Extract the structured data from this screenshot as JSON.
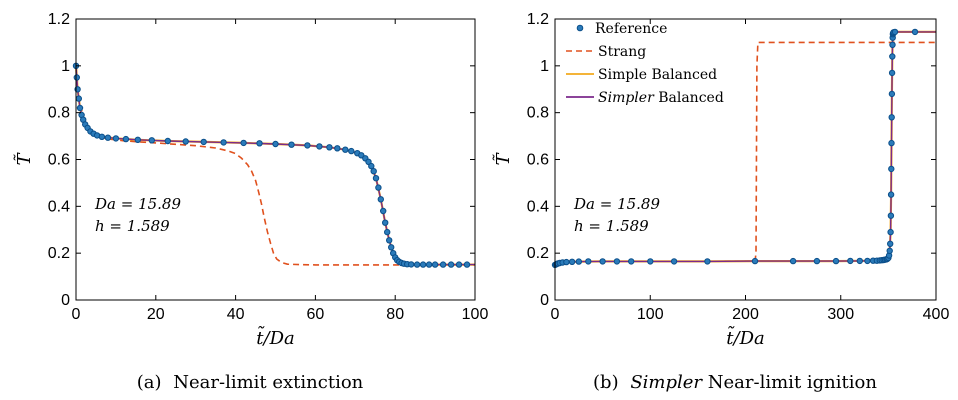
{
  "colors": {
    "reference": "#2b7bba",
    "reference_edge": "#0b4f8a",
    "strang": "#e0511e",
    "simple_balanced": "#f2a91d",
    "simpler_balanced": "#7b2a8c"
  },
  "legend": {
    "reference": "Reference",
    "strang": "Strang",
    "simple_balanced": "Simple Balanced",
    "simpler_italic": "Simpler",
    "simpler_rest": " Balanced"
  },
  "panels": [
    {
      "ylabel": "T̃",
      "xlabel": "t̃/Da",
      "annotation_da": "Da = 15.89",
      "annotation_h": "h = 1.589",
      "caption_prefix": "(a)",
      "caption_italic": "",
      "caption_text": "Near-limit extinction",
      "xticks": [
        "0",
        "20",
        "40",
        "60",
        "80",
        "100"
      ],
      "yticks": [
        "0",
        "0.2",
        "0.4",
        "0.6",
        "0.8",
        "1",
        "1.2"
      ]
    },
    {
      "ylabel": "T̃",
      "xlabel": "t̃/Da",
      "annotation_da": "Da = 15.89",
      "annotation_h": "h = 1.589",
      "caption_prefix": "(b)",
      "caption_italic": "Simpler",
      "caption_text": " Near-limit ignition",
      "xticks": [
        "0",
        "100",
        "200",
        "300",
        "400"
      ],
      "yticks": [
        "0",
        "0.2",
        "0.4",
        "0.6",
        "0.8",
        "1",
        "1.2"
      ]
    }
  ],
  "chart_data": [
    {
      "type": "line",
      "title": "",
      "xlabel": "t̃/Da",
      "ylabel": "T̃",
      "xlim": [
        0,
        100
      ],
      "ylim": [
        0,
        1.2
      ],
      "grid": false,
      "series": [
        {
          "name": "Reference",
          "style": "markers",
          "x": [
            0,
            0.2,
            0.4,
            0.7,
            1.0,
            1.4,
            1.8,
            2.3,
            2.9,
            3.6,
            4.4,
            5.3,
            6.5,
            8,
            10,
            12.5,
            15.5,
            19,
            23,
            27.5,
            32,
            37,
            42,
            46,
            50,
            54,
            58,
            61,
            63.5,
            65.5,
            67.5,
            69,
            70.5,
            71.5,
            72.5,
            73.3,
            74,
            74.6,
            75.2,
            75.8,
            76.4,
            77,
            77.5,
            78,
            78.5,
            79,
            79.5,
            80,
            80.5,
            81,
            81.6,
            82.2,
            83,
            84,
            85.5,
            87,
            88.5,
            90,
            92,
            94,
            96,
            98
          ],
          "y": [
            1.0,
            0.95,
            0.9,
            0.86,
            0.82,
            0.79,
            0.77,
            0.75,
            0.735,
            0.72,
            0.71,
            0.703,
            0.697,
            0.693,
            0.69,
            0.687,
            0.684,
            0.682,
            0.679,
            0.677,
            0.675,
            0.673,
            0.671,
            0.669,
            0.666,
            0.663,
            0.66,
            0.656,
            0.652,
            0.648,
            0.642,
            0.636,
            0.627,
            0.618,
            0.605,
            0.59,
            0.572,
            0.55,
            0.52,
            0.48,
            0.43,
            0.38,
            0.33,
            0.29,
            0.255,
            0.225,
            0.2,
            0.182,
            0.17,
            0.163,
            0.158,
            0.155,
            0.153,
            0.152,
            0.151,
            0.151,
            0.151,
            0.151,
            0.151,
            0.151,
            0.151,
            0.151
          ]
        },
        {
          "name": "Strang",
          "style": "dashed",
          "x": [
            0,
            0.5,
            1,
            2,
            3,
            5,
            8,
            12,
            16,
            20,
            25,
            30,
            35,
            38,
            40,
            41.5,
            43,
            44,
            45,
            45.8,
            46.5,
            47.2,
            48,
            48.8,
            49.5,
            50.3,
            51.5,
            53,
            56,
            60,
            70,
            80,
            90,
            100
          ],
          "y": [
            1.0,
            0.9,
            0.84,
            0.77,
            0.73,
            0.7,
            0.688,
            0.68,
            0.675,
            0.671,
            0.665,
            0.659,
            0.649,
            0.637,
            0.625,
            0.605,
            0.578,
            0.55,
            0.51,
            0.46,
            0.41,
            0.35,
            0.29,
            0.24,
            0.2,
            0.175,
            0.16,
            0.153,
            0.151,
            0.15,
            0.15,
            0.15,
            0.15,
            0.15
          ]
        },
        {
          "name": "Simple Balanced",
          "style": "solid",
          "x": [
            0,
            0.4,
            1.0,
            1.8,
            2.9,
            4.4,
            6.5,
            10,
            15.5,
            23,
            32,
            42,
            50,
            58,
            63.5,
            67.5,
            70.5,
            72.5,
            74,
            75.2,
            76.4,
            77.5,
            78.5,
            79.5,
            80.5,
            81.6,
            83,
            85.5,
            90,
            100
          ],
          "y": [
            1.0,
            0.9,
            0.82,
            0.77,
            0.735,
            0.71,
            0.697,
            0.69,
            0.684,
            0.679,
            0.675,
            0.671,
            0.666,
            0.66,
            0.652,
            0.642,
            0.627,
            0.605,
            0.572,
            0.52,
            0.43,
            0.33,
            0.255,
            0.2,
            0.17,
            0.158,
            0.153,
            0.151,
            0.151,
            0.151
          ]
        },
        {
          "name": "Simpler Balanced",
          "style": "solid",
          "x": [
            0,
            0.4,
            1.0,
            1.8,
            2.9,
            4.4,
            6.5,
            10,
            15.5,
            23,
            32,
            42,
            50,
            58,
            63.5,
            67.5,
            70.5,
            72.5,
            74,
            75.2,
            76.4,
            77.5,
            78.5,
            79.5,
            80.5,
            81.6,
            83,
            85.5,
            90,
            100
          ],
          "y": [
            1.0,
            0.9,
            0.82,
            0.77,
            0.735,
            0.71,
            0.697,
            0.69,
            0.684,
            0.679,
            0.675,
            0.671,
            0.666,
            0.66,
            0.652,
            0.642,
            0.627,
            0.605,
            0.572,
            0.52,
            0.43,
            0.33,
            0.255,
            0.2,
            0.17,
            0.158,
            0.153,
            0.151,
            0.151,
            0.151
          ]
        }
      ]
    },
    {
      "type": "line",
      "title": "",
      "xlabel": "t̃/Da",
      "ylabel": "T̃",
      "xlim": [
        0,
        400
      ],
      "ylim": [
        0,
        1.2
      ],
      "grid": false,
      "legend_position": "top-left",
      "series": [
        {
          "name": "Reference",
          "style": "markers",
          "x": [
            0,
            1,
            2,
            3,
            5,
            8,
            12,
            18,
            25,
            35,
            50,
            65,
            80,
            100,
            125,
            160,
            210,
            250,
            275,
            295,
            310,
            320,
            328,
            334,
            338,
            341,
            343,
            345,
            346.5,
            348,
            349,
            350,
            350.8,
            351.4,
            351.9,
            352.3,
            352.6,
            352.9,
            353.1,
            353.3,
            353.5,
            353.7,
            353.9,
            354.1,
            354.3,
            354.5,
            354.7,
            355,
            355.5,
            357,
            378
          ],
          "y": [
            0.15,
            0.152,
            0.154,
            0.156,
            0.158,
            0.16,
            0.162,
            0.163,
            0.164,
            0.165,
            0.165,
            0.165,
            0.165,
            0.165,
            0.165,
            0.165,
            0.166,
            0.166,
            0.166,
            0.166,
            0.167,
            0.167,
            0.167,
            0.168,
            0.168,
            0.169,
            0.17,
            0.171,
            0.172,
            0.174,
            0.176,
            0.18,
            0.19,
            0.21,
            0.24,
            0.29,
            0.36,
            0.45,
            0.56,
            0.67,
            0.78,
            0.88,
            0.97,
            1.04,
            1.09,
            1.12,
            1.135,
            1.14,
            1.143,
            1.145,
            1.145
          ]
        },
        {
          "name": "Strang",
          "style": "dashed",
          "x": [
            0,
            5,
            20,
            50,
            100,
            150,
            200,
            210,
            211,
            212,
            213,
            250,
            300,
            350,
            400
          ],
          "y": [
            0.15,
            0.158,
            0.163,
            0.165,
            0.165,
            0.165,
            0.166,
            0.166,
            0.2,
            1.0,
            1.1,
            1.1,
            1.1,
            1.1,
            1.1
          ]
        },
        {
          "name": "Simple Balanced",
          "style": "solid",
          "x": [
            0,
            5,
            12,
            25,
            50,
            100,
            160,
            210,
            250,
            295,
            320,
            334,
            341,
            345,
            348,
            350,
            351.4,
            352.3,
            352.9,
            353.3,
            353.7,
            354.1,
            354.5,
            355,
            357,
            400
          ],
          "y": [
            0.15,
            0.158,
            0.162,
            0.164,
            0.165,
            0.165,
            0.165,
            0.166,
            0.166,
            0.166,
            0.167,
            0.168,
            0.169,
            0.171,
            0.174,
            0.18,
            0.21,
            0.29,
            0.45,
            0.67,
            0.88,
            1.04,
            1.12,
            1.14,
            1.145,
            1.145
          ]
        },
        {
          "name": "Simpler Balanced",
          "style": "solid",
          "x": [
            0,
            5,
            12,
            25,
            50,
            100,
            160,
            210,
            250,
            295,
            320,
            334,
            341,
            345,
            348,
            350,
            351.4,
            352.3,
            352.9,
            353.3,
            353.7,
            354.1,
            354.5,
            355,
            357,
            400
          ],
          "y": [
            0.15,
            0.158,
            0.162,
            0.164,
            0.165,
            0.165,
            0.165,
            0.166,
            0.166,
            0.166,
            0.167,
            0.168,
            0.169,
            0.171,
            0.174,
            0.18,
            0.21,
            0.29,
            0.45,
            0.67,
            0.88,
            1.04,
            1.12,
            1.14,
            1.145,
            1.145
          ]
        }
      ]
    }
  ]
}
